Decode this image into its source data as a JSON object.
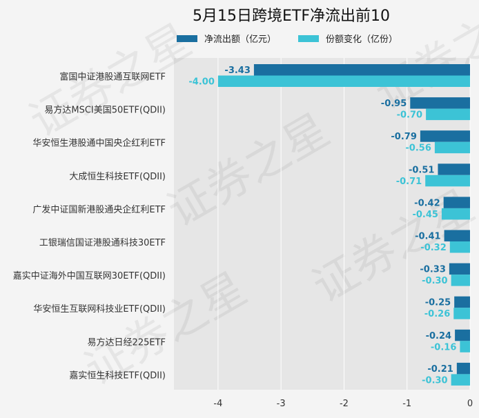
{
  "chart_data": {
    "type": "bar",
    "orientation": "horizontal",
    "title": "5月15日跨境ETF净流出前10",
    "categories": [
      "富国中证港股通互联网ETF",
      "易方达MSCI美国50ETF(QDII)",
      "华安恒生港股通中国央企红利ETF",
      "大成恒生科技ETF(QDII)",
      "广发中证国新港股通央企红利ETF",
      "工银瑞信国证港股通科技30ETF",
      "嘉实中证海外中国互联网30ETF(QDII)",
      "华安恒生互联网科技业ETF(QDII)",
      "易方达日经225ETF",
      "嘉实恒生科技ETF(QDII)"
    ],
    "series": [
      {
        "name": "净流出额（亿元）",
        "color": "#1a6fa0",
        "values": [
          -3.43,
          -0.95,
          -0.79,
          -0.51,
          -0.42,
          -0.41,
          -0.33,
          -0.25,
          -0.24,
          -0.21
        ],
        "labels": [
          "-3.43",
          "-0.95",
          "-0.79",
          "-0.51",
          "-0.42",
          "-0.41",
          "-0.33",
          "-0.25",
          "-0.24",
          "-0.21"
        ]
      },
      {
        "name": "份额变化（亿份）",
        "color": "#3cc3d6",
        "values": [
          -4.0,
          -0.7,
          -0.56,
          -0.71,
          -0.45,
          -0.32,
          -0.3,
          -0.26,
          -0.16,
          -0.3
        ],
        "labels": [
          "-4.00",
          "-0.70",
          "-0.56",
          "-0.71",
          "-0.45",
          "-0.32",
          "-0.30",
          "-0.26",
          "-0.16",
          "-0.30"
        ]
      }
    ],
    "xlim": [
      -4.7,
      0
    ],
    "xticks": [
      -4,
      -3,
      -2,
      -1,
      0
    ],
    "xtick_labels": [
      "-4",
      "-3",
      "-2",
      "-1",
      "0"
    ],
    "grid": true,
    "legend_position": "top",
    "plot_background": "#e6e6e6",
    "watermark": "证券之星"
  }
}
